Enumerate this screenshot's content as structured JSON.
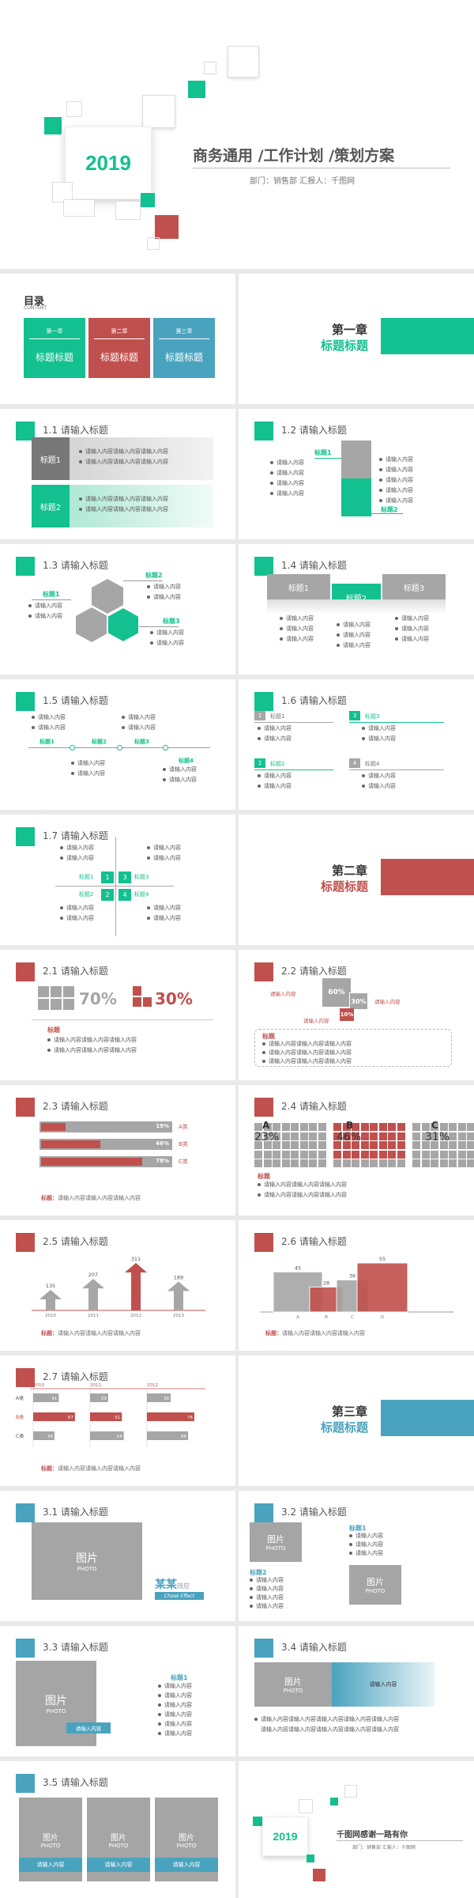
{
  "cover": {
    "year": "2019",
    "title": "商务通用 /工作计划 /策划方案",
    "subtitle": "部门：销售部  汇报人：千图网"
  },
  "toc": {
    "title": "目录",
    "title_en": "CONTENT",
    "items": [
      {
        "chapter": "第一章",
        "label": "标题标题",
        "color": "#13c08f"
      },
      {
        "chapter": "第二章",
        "label": "标题标题",
        "color": "#c0504d"
      },
      {
        "chapter": "第三章",
        "label": "标题标题",
        "color": "#4aa3be"
      }
    ]
  },
  "ch1": {
    "chapter": "第一章",
    "title": "标题标题"
  },
  "ch2": {
    "chapter": "第二章",
    "title": "标题标题"
  },
  "ch3": {
    "chapter": "第三章",
    "title": "标题标题"
  },
  "s11": {
    "title": "1.1 请输入标题",
    "rows": [
      {
        "label": "标题1",
        "lines": [
          "请输入内容请输入内容请输入内容",
          "请输入内容请输入内容请输入内容"
        ]
      },
      {
        "label": "标题2",
        "lines": [
          "请输入内容请输入内容请输入内容",
          "请输入内容请输入内容请输入内容"
        ]
      }
    ]
  },
  "s12": {
    "title": "1.2 请输入标题",
    "label1": "标题1",
    "label2": "标题2",
    "left": [
      "请输入内容",
      "请输入内容",
      "请输入内容",
      "请输入内容"
    ],
    "right": [
      "请输入内容",
      "请输入内容",
      "请输入内容",
      "请输入内容",
      "请输入内容"
    ]
  },
  "s13": {
    "title": "1.3 请输入标题",
    "l1": "标题1",
    "l2": "标题2",
    "l3": "标题3",
    "c1": [
      "请输入内容",
      "请输入内容"
    ],
    "c2": [
      "请输入内容",
      "请输入内容"
    ],
    "c3": [
      "请输入内容",
      "请输入内容"
    ]
  },
  "s14": {
    "title": "1.4 请输入标题",
    "tabs": [
      "标题1",
      "标题2",
      "标题3"
    ],
    "item": "请输入内容"
  },
  "s15": {
    "title": "1.5 请输入标题",
    "labels": [
      "标题1",
      "标题2",
      "标题3",
      "标题4"
    ],
    "item": "请输入内容"
  },
  "s16": {
    "title": "1.6 请输入标题",
    "nums": [
      "1",
      "2",
      "3",
      "4"
    ],
    "labels": [
      "标题1",
      "标题2",
      "标题3",
      "标题4"
    ],
    "item": "请输入内容"
  },
  "s17": {
    "title": "1.7 请输入标题",
    "nums": [
      "1",
      "2",
      "3",
      "4"
    ],
    "labels": [
      "标题1",
      "标题2",
      "标题3",
      "标题4"
    ],
    "item": "请输入内容"
  },
  "s21": {
    "title": "2.1 请输入标题",
    "p1": "70%",
    "p2": "30%",
    "label": "标题",
    "lines": [
      "请输入内容请输入内容请输入内容",
      "请输入内容请输入内容请输入内容"
    ]
  },
  "s22": {
    "title": "2.2 请输入标题",
    "p1": "60%",
    "p2": "30%",
    "p3": "10%",
    "item": "请输入内容",
    "label": "标题",
    "lines": [
      "请输入内容请输入内容请输入内容",
      "请输入内容请输入内容请输入内容",
      "请输入内容请输入内容请输入内容"
    ]
  },
  "s23": {
    "title": "2.3 请输入标题",
    "rows": [
      {
        "pct": "19%",
        "name": "A类",
        "value": 19
      },
      {
        "pct": "46%",
        "name": "B类",
        "value": 46
      },
      {
        "pct": "78%",
        "name": "C类",
        "value": 78
      }
    ],
    "label": "标题：",
    "note": "请输入内容请输入内容请输入内容"
  },
  "s24": {
    "title": "2.4 请输入标题",
    "groups": [
      {
        "name": "A",
        "pct": "23%",
        "value": 23
      },
      {
        "name": "B",
        "pct": "46%",
        "value": 46
      },
      {
        "name": "C",
        "pct": "31%",
        "value": 31
      }
    ],
    "label": "标题",
    "lines": [
      "请输入内容请输入内容请输入内容",
      "请输入内容请输入内容请输入内容"
    ]
  },
  "s25": {
    "title": "2.5 请输入标题",
    "chart_data": {
      "type": "bar",
      "categories": [
        "2010",
        "2011",
        "2012",
        "2013"
      ],
      "values": [
        135,
        207,
        311,
        189
      ],
      "highlight": 2
    },
    "label": "标题：",
    "note": "请输入内容请输入内容请输入内容"
  },
  "s26": {
    "title": "2.6 请输入标题",
    "chart_data": {
      "type": "bar",
      "categories": [
        "A",
        "B",
        "C",
        "D"
      ],
      "values": [
        45,
        28,
        36,
        55
      ]
    },
    "label": "标题：",
    "note": "请输入内容请输入内容请输入内容"
  },
  "s27": {
    "title": "2.7 请输入标题",
    "chart_data": {
      "type": "bar",
      "years": [
        "2010",
        "2011",
        "2012"
      ],
      "rows": [
        {
          "name": "A类",
          "values": [
            41,
            29,
            38
          ]
        },
        {
          "name": "B类",
          "values": [
            67,
            51,
            76
          ]
        },
        {
          "name": "C类",
          "values": [
            34,
            54,
            66
          ]
        }
      ]
    },
    "label": "标题：",
    "note": "请输入内容请输入内容请输入内容"
  },
  "s31": {
    "title": "3.1 请输入标题",
    "pic": "图片",
    "pic_en": "PHOTO",
    "brand": "某某",
    "brand2": "效应",
    "brand_en": "Chook Effect"
  },
  "s32": {
    "title": "3.2 请输入标题",
    "pic": "图片",
    "pic_en": "PHOTO",
    "l1": "标题1",
    "l2": "标题2",
    "item": "请输入内容"
  },
  "s33": {
    "title": "3.3 请输入标题",
    "pic": "图片",
    "pic_en": "PHOTO",
    "tag": "请输入内容",
    "l1": "标题1",
    "item": "请输入内容"
  },
  "s34": {
    "title": "3.4 请输入标题",
    "pic": "图片",
    "pic_en": "PHOTO",
    "tag": "请输入内容",
    "lines": [
      "请输入内容请输入内容请输入内容请输入内容请输入内容",
      "请输入内容请输入内容请输入内容请输入内容请输入内容"
    ]
  },
  "s35": {
    "title": "3.5 请输入标题",
    "pic": "图片",
    "pic_en": "PHOTO",
    "tag": "请输入内容"
  },
  "end": {
    "year": "2019",
    "title": "千图网感谢一路有你",
    "subtitle": "部门：销售部  汇报人：千图网"
  }
}
